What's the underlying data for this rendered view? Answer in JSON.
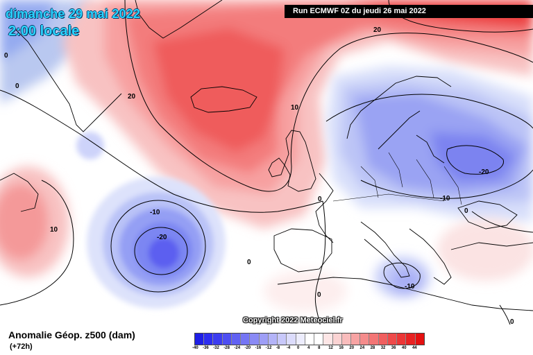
{
  "header": {
    "date_line": "dimanche 29 mai 2022",
    "time_line": "2:00 locale",
    "run_info": "Run ECMWF 0Z du jeudi 26 mai 2022"
  },
  "copyright": "Copyright 2022 Meteociel.fr",
  "footer": {
    "parameter": "Anomalie Géop. z500 (dam)",
    "lead_time": "(+72h)"
  },
  "colorbar": {
    "colors": [
      "#1f1fe6",
      "#2d2df0",
      "#3c3cf0",
      "#4e4ef2",
      "#6161f3",
      "#7575f4",
      "#8a8af5",
      "#9e9ef6",
      "#b3b3f8",
      "#c8c8fa",
      "#dcdcfc",
      "#ededfd",
      "#ffffff",
      "#ffffff",
      "#fde6e6",
      "#fbd3d3",
      "#f9bcbc",
      "#f7a3a3",
      "#f58c8c",
      "#f37575",
      "#f15f5f",
      "#ef4a4a",
      "#ec3636",
      "#e82222",
      "#e41010"
    ],
    "ticks": [
      "-40",
      "-36",
      "-32",
      "-28",
      "-24",
      "-20",
      "-16",
      "-12",
      "-8",
      "-4",
      "0",
      "4",
      "8",
      "12",
      "16",
      "20",
      "24",
      "28",
      "32",
      "36",
      "40",
      "44"
    ]
  },
  "contour_labels": [
    {
      "text": "20"
    },
    {
      "text": "20"
    },
    {
      "text": "10"
    },
    {
      "text": "0"
    },
    {
      "text": "0"
    },
    {
      "text": "10"
    },
    {
      "text": "-10"
    },
    {
      "text": "-20"
    },
    {
      "text": "0"
    },
    {
      "text": "0"
    },
    {
      "text": "-20"
    },
    {
      "text": "-10"
    },
    {
      "text": "-10"
    },
    {
      "text": "0"
    },
    {
      "text": "0"
    },
    {
      "text": "0"
    }
  ],
  "colors": {
    "title_text": "#2ad4ff",
    "warm_anomaly": "#f05050",
    "cold_anomaly": "#6d6df2",
    "land_outline": "#000000"
  }
}
